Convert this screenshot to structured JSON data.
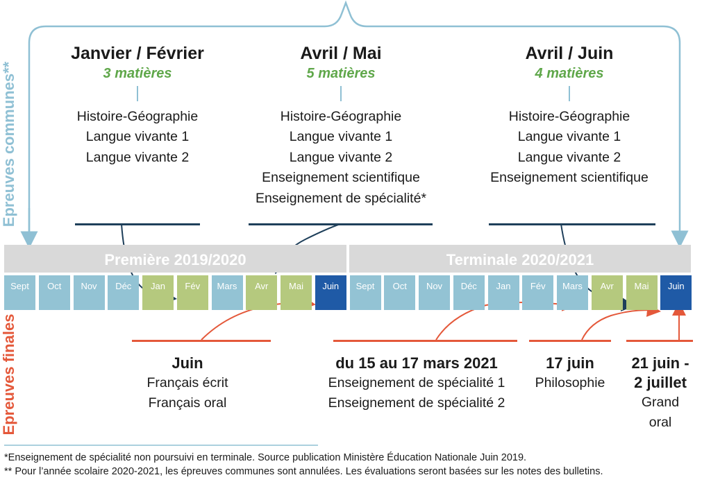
{
  "side_labels": {
    "communes": "Epreuves communes**",
    "finales": "Epreuves finales"
  },
  "top_groups": [
    {
      "title": "Janvier / Février",
      "count": "3 matières",
      "subjects": [
        "Histoire-Géographie",
        "Langue vivante 1",
        "Langue vivante 2"
      ]
    },
    {
      "title": "Avril / Mai",
      "count": "5 matières",
      "subjects": [
        "Histoire-Géographie",
        "Langue vivante 1",
        "Langue vivante 2",
        "Enseignement scientifique",
        "Enseignement de spécialité*"
      ]
    },
    {
      "title": "Avril / Juin",
      "count": "4 matières",
      "subjects": [
        "Histoire-Géographie",
        "Langue vivante 1",
        "Langue vivante 2",
        "Enseignement scientifique"
      ]
    }
  ],
  "years": {
    "premiere": "Première 2019/2020",
    "terminale": "Terminale 2020/2021"
  },
  "months": [
    {
      "label": "Sept",
      "color": "blue"
    },
    {
      "label": "Oct",
      "color": "blue"
    },
    {
      "label": "Nov",
      "color": "blue"
    },
    {
      "label": "Déc",
      "color": "blue"
    },
    {
      "label": "Jan",
      "color": "green"
    },
    {
      "label": "Fév",
      "color": "green"
    },
    {
      "label": "Mars",
      "color": "blue"
    },
    {
      "label": "Avr",
      "color": "green"
    },
    {
      "label": "Mai",
      "color": "green"
    },
    {
      "label": "Juin",
      "color": "dark"
    },
    {
      "label": "Sept",
      "color": "blue"
    },
    {
      "label": "Oct",
      "color": "blue"
    },
    {
      "label": "Nov",
      "color": "blue"
    },
    {
      "label": "Déc",
      "color": "blue"
    },
    {
      "label": "Jan",
      "color": "blue"
    },
    {
      "label": "Fév",
      "color": "blue"
    },
    {
      "label": "Mars",
      "color": "blue"
    },
    {
      "label": "Avr",
      "color": "green"
    },
    {
      "label": "Mai",
      "color": "green"
    },
    {
      "label": "Juin",
      "color": "dark"
    }
  ],
  "month_colors": {
    "blue": "#93c3d4",
    "green": "#b5c97e",
    "dark": "#1f5aa6",
    "accent_green_text": "#5fa74a",
    "communes_label": "#8fc0d4",
    "finales_label": "#e4583a",
    "arrow_dark": "#1e3f5a",
    "arrow_red": "#e4583a"
  },
  "finals": [
    {
      "title": "Juin",
      "subjects": [
        "Français écrit",
        "Français oral"
      ]
    },
    {
      "title": "du 15 au 17 mars 2021",
      "subjects": [
        "Enseignement de spécialité 1",
        "Enseignement de spécialité 2"
      ]
    },
    {
      "title": "17 juin",
      "subjects": [
        "Philosophie"
      ]
    },
    {
      "title_line1": "21 juin -",
      "title_line2": "2 juillet",
      "subjects": [
        "Grand",
        "oral"
      ]
    }
  ],
  "footnotes": [
    "*Enseignement de spécialité  non poursuivi en terminale. Source publication Ministère Éducation Nationale Juin 2019.",
    "** Pour l’année scolaire 2020-2021, les épreuves communes sont annulées. Les évaluations seront basées sur les notes des bulletins."
  ]
}
